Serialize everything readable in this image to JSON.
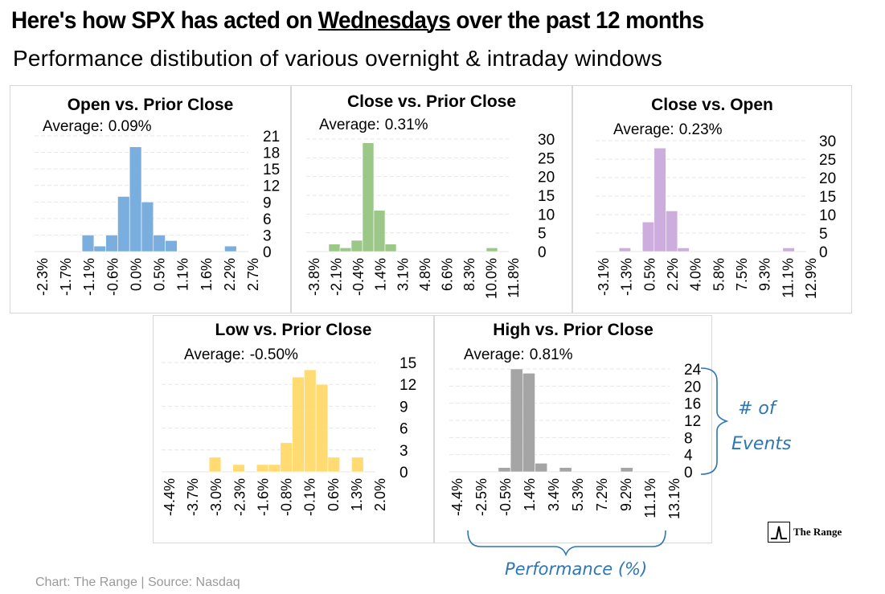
{
  "header": {
    "title_part1": "Here's how SPX has acted on",
    "title_highlight": "Wednesdays",
    "title_part2": "over the past 12 months",
    "subtitle": "Performance distibution of various overnight & intraday windows"
  },
  "average_label": "Average:",
  "footer": "Chart: The Range | Source: Nasdaq",
  "annotations": {
    "y_axis_label_line1": "# of",
    "y_axis_label_line2": "Events",
    "x_axis_label": "Performance (%)"
  },
  "brand": {
    "name": "The Range"
  },
  "colors": {
    "open_vs_prior_close": "#6fa8dc",
    "close_vs_prior_close": "#93c47d",
    "close_vs_open": "#c9a6dc",
    "low_vs_prior_close": "#ffd966",
    "high_vs_prior_close": "#9e9e9e",
    "annotation": "#2e75b6",
    "gridline": "#e6e6e6"
  },
  "chart_data": [
    {
      "id": "open_vs_prior_close",
      "type": "bar",
      "title": "Open vs. Prior Close",
      "average": "0.09%",
      "x_tick_labels": [
        "-2.3%",
        "-1.7%",
        "-1.1%",
        "-0.6%",
        "0.0%",
        "0.5%",
        "1.1%",
        "1.6%",
        "2.2%",
        "2.7%"
      ],
      "bin_count": 18,
      "values": [
        0,
        0,
        0,
        0,
        3,
        1,
        3,
        10,
        19,
        9,
        3,
        2,
        0,
        0,
        0,
        0,
        1,
        0
      ],
      "y_ticks": [
        0,
        3,
        6,
        9,
        12,
        15,
        18,
        21
      ],
      "ylim": [
        0,
        21
      ]
    },
    {
      "id": "close_vs_prior_close",
      "type": "bar",
      "title": "Close vs. Prior Close",
      "average": "0.31%",
      "x_tick_labels": [
        "-3.8%",
        "-2.1%",
        "-0.4%",
        "1.4%",
        "3.1%",
        "4.8%",
        "6.6%",
        "8.3%",
        "10.0%",
        "11.8%"
      ],
      "bin_count": 18,
      "values": [
        0,
        0,
        2,
        1,
        3,
        29,
        11,
        2,
        0,
        0,
        0,
        0,
        0,
        0,
        0,
        0,
        1,
        0
      ],
      "y_ticks": [
        0,
        5,
        10,
        15,
        20,
        25,
        30
      ],
      "ylim": [
        0,
        30
      ]
    },
    {
      "id": "close_vs_open",
      "type": "bar",
      "title": "Close vs. Open",
      "average": "0.23%",
      "x_tick_labels": [
        "-3.1%",
        "-1.3%",
        "0.5%",
        "2.2%",
        "4.0%",
        "5.8%",
        "7.5%",
        "9.3%",
        "11.1%",
        "12.9%"
      ],
      "bin_count": 18,
      "values": [
        0,
        0,
        1,
        0,
        8,
        28,
        11,
        1,
        0,
        0,
        0,
        0,
        0,
        0,
        0,
        0,
        1,
        0
      ],
      "y_ticks": [
        0,
        5,
        10,
        15,
        20,
        25,
        30
      ],
      "ylim": [
        0,
        30
      ]
    },
    {
      "id": "low_vs_prior_close",
      "type": "bar",
      "title": "Low vs. Prior Close",
      "average": "-0.50%",
      "x_tick_labels": [
        "-4.4%",
        "-3.7%",
        "-3.0%",
        "-2.3%",
        "-1.6%",
        "-0.8%",
        "-0.1%",
        "0.6%",
        "1.3%",
        "2.0%"
      ],
      "bin_count": 18,
      "values": [
        0,
        0,
        0,
        0,
        2,
        0,
        1,
        0,
        1,
        1,
        4,
        13,
        14,
        12,
        2,
        0,
        2,
        0
      ],
      "y_ticks": [
        0,
        3,
        6,
        9,
        12,
        15
      ],
      "ylim": [
        0,
        15
      ]
    },
    {
      "id": "high_vs_prior_close",
      "type": "bar",
      "title": "High vs. Prior Close",
      "average": "0.81%",
      "x_tick_labels": [
        "-4.4%",
        "-2.5%",
        "-0.5%",
        "1.4%",
        "3.4%",
        "5.3%",
        "7.2%",
        "9.2%",
        "11.1%",
        "13.1%"
      ],
      "bin_count": 18,
      "values": [
        0,
        0,
        0,
        0,
        1,
        24,
        23,
        2,
        0,
        1,
        0,
        0,
        0,
        0,
        1,
        0,
        0,
        0
      ],
      "y_ticks": [
        0,
        4,
        8,
        12,
        16,
        20,
        24
      ],
      "ylim": [
        0,
        24
      ]
    }
  ]
}
